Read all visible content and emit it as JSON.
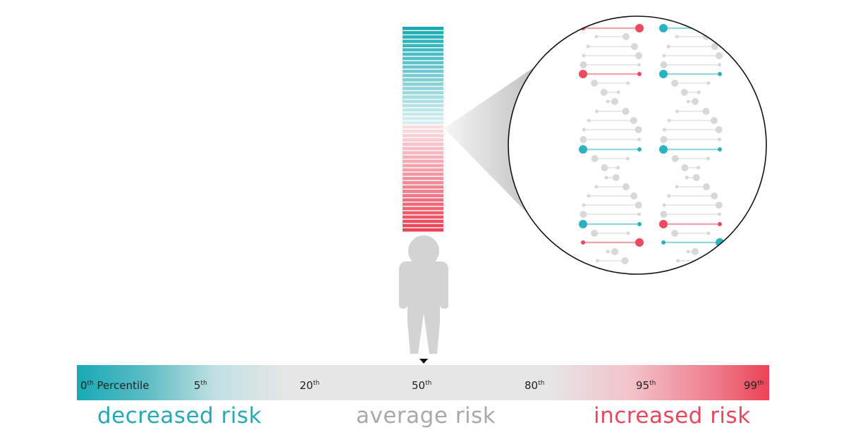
{
  "scale": {
    "ticks": [
      {
        "num": "0",
        "sup": "th",
        "suffix": " Percentile"
      },
      {
        "num": "5",
        "sup": "th",
        "suffix": ""
      },
      {
        "num": "20",
        "sup": "th",
        "suffix": ""
      },
      {
        "num": "50",
        "sup": "th",
        "suffix": ""
      },
      {
        "num": "80",
        "sup": "th",
        "suffix": ""
      },
      {
        "num": "95",
        "sup": "th",
        "suffix": ""
      },
      {
        "num": "99",
        "sup": "th",
        "suffix": ""
      }
    ],
    "marker_percentile": 50
  },
  "labels": {
    "decreased": "decreased risk",
    "average": "average risk",
    "increased": "increased risk"
  },
  "colors": {
    "decreased": "#26a9b5",
    "average": "#a9a9a9",
    "increased": "#e8485e",
    "scale_mid": "#e6e6e6",
    "figure": "#d3d3d3",
    "dna_gray": "#d8d8d8"
  },
  "icons": {
    "person": "person-silhouette-icon",
    "dna": "dna-helix-icon",
    "marker": "triangle-down-icon"
  }
}
